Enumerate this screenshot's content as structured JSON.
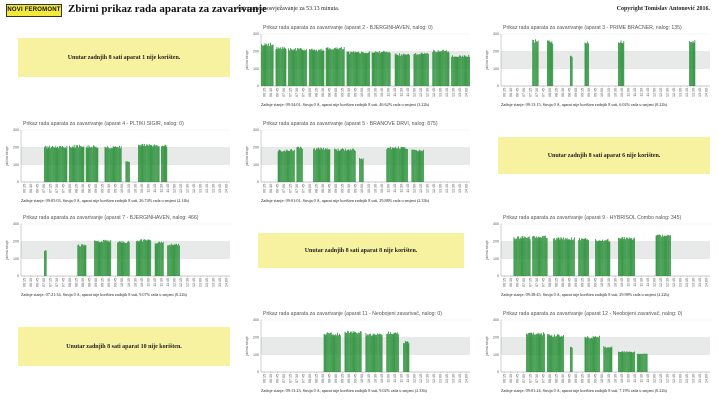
{
  "header": {
    "logo_text": "NOVI FEROMONT",
    "title": "Zbirni prikaz rada aparata za zavarivanje",
    "refresh_text": "Automatsko osvježavanje za 53.13 minuta.",
    "copyright": "Copyright Tomislav Antonović 2016."
  },
  "colors": {
    "bar": "#1f8a2e",
    "band": "#e8eaea",
    "notice_bg": "#f7f2a0",
    "logo_bg": "#f3e93a"
  },
  "notices": [
    {
      "text": "Unutar zadnjih 8 sati aparat 1 nije korišten."
    },
    {
      "text": "Unutar zadnjih 8 sati aparat 6 nije korišten."
    },
    {
      "text": "Unutar zadnjih 8 sati aparat 8 nije korišten."
    },
    {
      "text": "Unutar zadnjih 8 sati aparat 10 nije korišten."
    }
  ],
  "chart_data": [
    {
      "type": "bar",
      "title": "Prikaz rada aparata za zavarivanje (aparat 2 - BJERGINHAVEN, nalog: 0)",
      "ylabel": "jačina struje",
      "ylim": [
        0,
        300
      ],
      "yticks": [
        0,
        100,
        200,
        300
      ],
      "categories": [
        "06:15",
        "06:30",
        "06:45",
        "07:00",
        "07:15",
        "07:30",
        "07:45",
        "08:00",
        "08:15",
        "08:30",
        "08:45",
        "09:00",
        "09:15",
        "09:30",
        "09:45",
        "10:00",
        "10:15",
        "10:30",
        "10:45",
        "11:00",
        "11:15",
        "11:30",
        "11:45",
        "12:00",
        "12:15",
        "12:30",
        "12:45",
        "13:00",
        "13:15",
        "13:30",
        "13:45",
        "14:00"
      ],
      "footer": "Zadnje stanje: 09:34:01, Struja 0 A, aparat nije korišten zadnjih 8 sati, 46.62% rada u smjeni (3.22h)",
      "activity": [
        [
          0.0,
          0.06,
          250
        ],
        [
          0.07,
          0.12,
          230
        ],
        [
          0.13,
          0.22,
          220
        ],
        [
          0.23,
          0.3,
          215
        ],
        [
          0.31,
          0.4,
          225
        ],
        [
          0.41,
          0.52,
          200
        ],
        [
          0.53,
          0.62,
          205
        ],
        [
          0.64,
          0.71,
          190
        ],
        [
          0.73,
          0.8,
          195
        ],
        [
          0.82,
          0.9,
          210
        ],
        [
          0.91,
          1.0,
          180
        ]
      ]
    },
    {
      "type": "bar",
      "title": "Prikaz rada aparata za zavarivanje (aparat 3 - PRIME BRACNER, nalog: 135)",
      "ylabel": "jačina struje",
      "ylim": [
        0,
        300
      ],
      "yticks": [
        0,
        100,
        200,
        300
      ],
      "categories": [
        "06:15",
        "06:30",
        "06:45",
        "07:00",
        "07:15",
        "07:30",
        "07:45",
        "08:00",
        "08:15",
        "08:30",
        "08:45",
        "09:00",
        "09:15",
        "09:30",
        "09:45",
        "10:00",
        "10:15",
        "10:30",
        "10:45",
        "11:00",
        "11:15",
        "11:30",
        "11:45",
        "12:00",
        "12:15",
        "12:30",
        "12:45",
        "13:00",
        "13:15",
        "13:30",
        "13:45",
        "14:00"
      ],
      "footer": "Zadnje stanje: 09:13:15, Struja 0 A, aparat nije korišten zadnjih 8 sati, 6.02% rada u smjeni (0.22h)",
      "activity": [
        [
          0.15,
          0.18,
          270
        ],
        [
          0.22,
          0.25,
          265
        ],
        [
          0.33,
          0.34,
          180
        ],
        [
          0.4,
          0.42,
          260
        ],
        [
          0.56,
          0.59,
          265
        ],
        [
          0.9,
          0.93,
          270
        ]
      ]
    },
    {
      "type": "bar",
      "title": "Prikaz rada aparata za zavarivanje (aparat 4 - PLTIKI SIGIR, nalog: 0)",
      "ylabel": "jačina struje",
      "ylim": [
        0,
        300
      ],
      "yticks": [
        0,
        100,
        200,
        300
      ],
      "categories": [
        "06:15",
        "06:30",
        "06:45",
        "07:00",
        "07:15",
        "07:30",
        "07:45",
        "08:00",
        "08:15",
        "08:30",
        "08:45",
        "09:00",
        "09:15",
        "09:30",
        "09:45",
        "10:00",
        "10:15",
        "10:30",
        "10:45",
        "11:00",
        "11:15",
        "11:30",
        "11:45",
        "12:00",
        "12:15",
        "12:30",
        "12:45",
        "13:00",
        "13:15",
        "13:30",
        "13:45",
        "14:00"
      ],
      "footer": "Zadnje stanje: 09:05:03, Struja 0 A, aparat nije korišten zadnjih 8 sati, 26.74% rada u smjeni (2.14h)",
      "activity": [
        [
          0.11,
          0.22,
          210
        ],
        [
          0.23,
          0.3,
          215
        ],
        [
          0.31,
          0.37,
          212
        ],
        [
          0.4,
          0.48,
          210
        ],
        [
          0.5,
          0.52,
          120
        ],
        [
          0.56,
          0.66,
          220
        ],
        [
          0.67,
          0.7,
          215
        ]
      ]
    },
    {
      "type": "bar",
      "title": "Prikaz rada aparata za zavarivanje (aparat 5 - BRANOVE DRVI, nalog: 875)",
      "ylabel": "jačina struje",
      "ylim": [
        0,
        300
      ],
      "yticks": [
        0,
        100,
        200,
        300
      ],
      "categories": [
        "06:15",
        "06:30",
        "06:45",
        "07:00",
        "07:15",
        "07:30",
        "07:45",
        "08:00",
        "08:15",
        "08:30",
        "08:45",
        "09:00",
        "09:15",
        "09:30",
        "09:45",
        "10:00",
        "10:15",
        "10:30",
        "10:45",
        "11:00",
        "11:15",
        "11:30",
        "11:45",
        "12:00",
        "12:15",
        "12:30",
        "12:45",
        "13:00",
        "13:15",
        "13:30",
        "13:45",
        "14:00"
      ],
      "footer": "Zadnje stanje: 09:01:01, Struja 0 A, aparat nije korišten zadnjih 8 sati, 29.88% rada u smjeni (2.33h)",
      "activity": [
        [
          0.08,
          0.16,
          190
        ],
        [
          0.17,
          0.2,
          205
        ],
        [
          0.25,
          0.33,
          200
        ],
        [
          0.35,
          0.45,
          195
        ],
        [
          0.47,
          0.49,
          140
        ],
        [
          0.6,
          0.7,
          205
        ],
        [
          0.72,
          0.78,
          190
        ]
      ]
    },
    {
      "type": "bar",
      "title": "Prikaz rada aparata za zavarivanje (aparat 7 - BJERGINHAVEN, nalog: 466)",
      "ylabel": "jačina struje",
      "ylim": [
        0,
        300
      ],
      "yticks": [
        0,
        100,
        200,
        300
      ],
      "categories": [
        "06:15",
        "06:30",
        "06:45",
        "07:00",
        "07:15",
        "07:30",
        "07:45",
        "08:00",
        "08:15",
        "08:30",
        "08:45",
        "09:00",
        "09:15",
        "09:30",
        "09:45",
        "10:00",
        "10:15",
        "10:30",
        "10:45",
        "11:00",
        "11:15",
        "11:30",
        "11:45",
        "12:00",
        "12:15",
        "12:30",
        "12:45",
        "13:00",
        "13:15",
        "13:30",
        "13:45",
        "14:00"
      ],
      "footer": "Zadnje stanje: 07:21:34, Struja 0 A, aparat nije korišten zadnjih 8 sati, 9.07% rada u smjeni (0.22h)",
      "activity": [
        [
          0.11,
          0.12,
          150
        ],
        [
          0.27,
          0.31,
          185
        ],
        [
          0.35,
          0.43,
          210
        ],
        [
          0.46,
          0.52,
          205
        ],
        [
          0.55,
          0.62,
          215
        ],
        [
          0.64,
          0.68,
          200
        ],
        [
          0.7,
          0.76,
          190
        ]
      ]
    },
    {
      "type": "bar",
      "title": "Prikaz rada aparata za zavarivanje (aparat 9 - HYBRISOL Combo nalog: 345)",
      "ylabel": "jačina struje",
      "ylim": [
        0,
        300
      ],
      "yticks": [
        0,
        100,
        200,
        300
      ],
      "categories": [
        "06:15",
        "06:30",
        "06:45",
        "07:00",
        "07:15",
        "07:30",
        "07:45",
        "08:00",
        "08:15",
        "08:30",
        "08:45",
        "09:00",
        "09:15",
        "09:30",
        "09:45",
        "10:00",
        "10:15",
        "10:30",
        "10:45",
        "11:00",
        "11:15",
        "11:30",
        "11:45",
        "12:00",
        "12:15",
        "12:30",
        "12:45",
        "13:00",
        "13:15",
        "13:30",
        "13:45",
        "14:00"
      ],
      "footer": "Zadnje stanje: 09:38:45, Struja 0 A, aparat nije korišten zadnjih 8 sati, 29.98% rada u smjeni (2.22h)",
      "activity": [
        [
          0.06,
          0.14,
          230
        ],
        [
          0.15,
          0.22,
          235
        ],
        [
          0.25,
          0.35,
          225
        ],
        [
          0.37,
          0.42,
          220
        ],
        [
          0.45,
          0.52,
          215
        ],
        [
          0.56,
          0.64,
          225
        ],
        [
          0.74,
          0.81,
          240
        ]
      ]
    },
    {
      "type": "bar",
      "title": "Prikaz rada aparata za zavarivanje (aparat 11 - Neobojeni zavarivač, nalog: 0)",
      "ylabel": "jačina struje",
      "ylim": [
        0,
        300
      ],
      "yticks": [
        0,
        100,
        200,
        300
      ],
      "categories": [
        "06:15",
        "06:30",
        "06:45",
        "07:00",
        "07:15",
        "07:30",
        "07:45",
        "08:00",
        "08:15",
        "08:30",
        "08:45",
        "09:00",
        "09:15",
        "09:30",
        "09:45",
        "10:00",
        "10:15",
        "10:30",
        "10:45",
        "11:00",
        "11:15",
        "11:30",
        "11:45",
        "12:00",
        "12:15",
        "12:30",
        "12:45",
        "13:00",
        "13:15",
        "13:30",
        "13:45",
        "14:00"
      ],
      "footer": "Zadnje stanje: 09:13:23, Struja 0 A, aparat nije korišten zadnjih 8 sati, 9.02% rada u smjeni (2.33h)",
      "activity": [
        [
          0.3,
          0.38,
          230
        ],
        [
          0.4,
          0.48,
          240
        ],
        [
          0.5,
          0.58,
          225
        ],
        [
          0.6,
          0.66,
          235
        ],
        [
          0.68,
          0.71,
          180
        ]
      ]
    },
    {
      "type": "bar",
      "title": "Prikaz rada aparata za zavarivanje (aparat 12 - Neobojeni zavarivač, nalog: 0)",
      "ylabel": "jačina struje",
      "ylim": [
        0,
        300
      ],
      "yticks": [
        0,
        100,
        200,
        300
      ],
      "categories": [
        "06:15",
        "06:30",
        "06:45",
        "07:00",
        "07:15",
        "07:30",
        "07:45",
        "08:00",
        "08:15",
        "08:30",
        "08:45",
        "09:00",
        "09:15",
        "09:30",
        "09:45",
        "10:00",
        "10:15",
        "10:30",
        "10:45",
        "11:00",
        "11:15",
        "11:30",
        "11:45",
        "12:00",
        "12:15",
        "12:30",
        "12:45",
        "13:00",
        "13:15",
        "13:30",
        "13:45",
        "14:00"
      ],
      "footer": "Zadnje stanje: 09:01:24, Struja 0 A, aparat nije korišten zadnjih 8 sati, 7.19% rada u smjeni (0.22h)",
      "activity": [
        [
          0.12,
          0.21,
          230
        ],
        [
          0.22,
          0.3,
          220
        ],
        [
          0.33,
          0.34,
          150
        ],
        [
          0.4,
          0.47,
          210
        ],
        [
          0.49,
          0.53,
          150
        ],
        [
          0.56,
          0.64,
          120
        ],
        [
          0.65,
          0.7,
          110
        ]
      ]
    }
  ]
}
